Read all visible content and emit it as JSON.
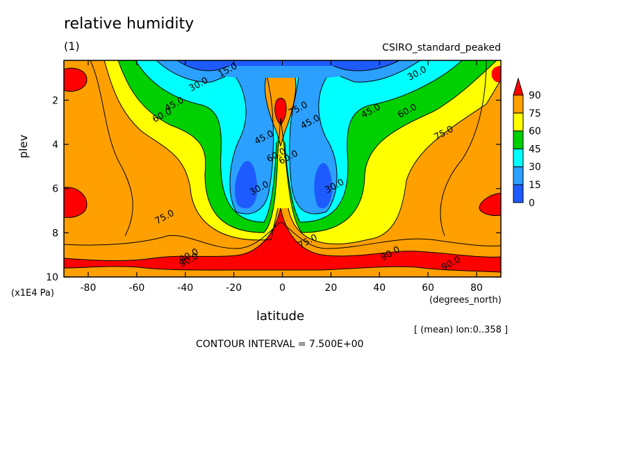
{
  "chart_data": {
    "type": "heatmap",
    "title": "relative humidity",
    "subtitle": "(1)",
    "model_label": "CSIRO_standard_peaked",
    "xlabel": "latitude",
    "xunits": "(degrees_north)",
    "ylabel": "plev",
    "yunits": "(x1E4 Pa)",
    "note": "[ (mean) lon:0..358 ]",
    "contour_interval": "CONTOUR INTERVAL = 7.500E+00",
    "xlim": [
      -90,
      90
    ],
    "ylim": [
      10,
      0.2
    ],
    "x_ticks": [
      -80,
      -60,
      -40,
      -20,
      0,
      20,
      40,
      60,
      80
    ],
    "x_tick_labels": [
      "-80",
      "-60",
      "-40",
      "-20",
      "0",
      "20",
      "40",
      "60",
      "80"
    ],
    "y_ticks": [
      2,
      4,
      6,
      8,
      10
    ],
    "y_tick_labels": [
      "2",
      "4",
      "6",
      "8",
      "10"
    ],
    "colorbar": {
      "levels": [
        0,
        15,
        30,
        45,
        60,
        75,
        90
      ],
      "labels": [
        "0",
        "15",
        "30",
        "45",
        "60",
        "75",
        "90"
      ],
      "colors": [
        "#1e5bff",
        "#2ba0ff",
        "#00ffff",
        "#00d000",
        "#ffff00",
        "#ffa000",
        "#ff0000"
      ]
    },
    "contour_labels": [
      {
        "text": "15.0",
        "lat": -22,
        "plev": 0.75
      },
      {
        "text": "30.0",
        "lat": -34,
        "plev": 1.4
      },
      {
        "text": "30.0",
        "lat": 56,
        "plev": 0.9
      },
      {
        "text": "45.0",
        "lat": -44,
        "plev": 2.3
      },
      {
        "text": "60.0",
        "lat": -49,
        "plev": 2.8
      },
      {
        "text": "45.0",
        "lat": -7,
        "plev": 3.8
      },
      {
        "text": "45.0",
        "lat": 12,
        "plev": 3.1
      },
      {
        "text": "45.0",
        "lat": 37,
        "plev": 2.6
      },
      {
        "text": "60.0",
        "lat": 52,
        "plev": 2.6
      },
      {
        "text": "75.0",
        "lat": 67,
        "plev": 3.6
      },
      {
        "text": "75.0",
        "lat": 7,
        "plev": 2.5
      },
      {
        "text": "60.0",
        "lat": 3,
        "plev": 4.7
      },
      {
        "text": "60.0",
        "lat": -2,
        "plev": 4.6
      },
      {
        "text": "30.0",
        "lat": -9,
        "plev": 6.1
      },
      {
        "text": "30.0",
        "lat": 22,
        "plev": 6.0
      },
      {
        "text": "75.0",
        "lat": -48,
        "plev": 7.4
      },
      {
        "text": "75.0",
        "lat": 11,
        "plev": 8.5
      },
      {
        "text": "90.0",
        "lat": -38,
        "plev": 9.15
      },
      {
        "text": "90.0",
        "lat": -38,
        "plev": 9.35
      },
      {
        "text": "90.0",
        "lat": 45,
        "plev": 9.05
      },
      {
        "text": "90.0",
        "lat": 70,
        "plev": 9.5
      }
    ]
  }
}
